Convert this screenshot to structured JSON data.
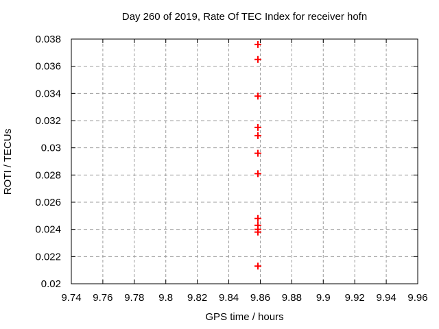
{
  "chart_data": {
    "type": "scatter",
    "title": "Day 260 of 2019, Rate Of TEC Index for receiver hofn",
    "xlabel": "GPS time / hours",
    "ylabel": "ROTI / TECUs",
    "xlim": [
      9.74,
      9.96
    ],
    "ylim": [
      0.02,
      0.038
    ],
    "xticks": [
      9.74,
      9.76,
      9.78,
      9.8,
      9.82,
      9.84,
      9.86,
      9.88,
      9.9,
      9.92,
      9.94,
      9.96
    ],
    "xtick_labels": [
      "9.74",
      "9.76",
      "9.78",
      "9.8",
      "9.82",
      "9.84",
      "9.86",
      "9.88",
      "9.9",
      "9.92",
      "9.94",
      "9.96"
    ],
    "yticks": [
      0.02,
      0.022,
      0.024,
      0.026,
      0.028,
      0.03,
      0.032,
      0.034,
      0.036,
      0.038
    ],
    "ytick_labels": [
      "0.02",
      "0.022",
      "0.024",
      "0.026",
      "0.028",
      "0.03",
      "0.032",
      "0.034",
      "0.036",
      "0.038"
    ],
    "grid": true,
    "legend": "none",
    "series": [
      {
        "name": "",
        "marker": "plus",
        "color": "#ff0000",
        "points": [
          [
            9.8585,
            0.0376
          ],
          [
            9.8585,
            0.0365
          ],
          [
            9.8585,
            0.0338
          ],
          [
            9.8585,
            0.0315
          ],
          [
            9.8585,
            0.0309
          ],
          [
            9.8585,
            0.0296
          ],
          [
            9.8585,
            0.0281
          ],
          [
            9.8585,
            0.0248
          ],
          [
            9.8585,
            0.0243
          ],
          [
            9.8585,
            0.024
          ],
          [
            9.8585,
            0.0238
          ],
          [
            9.8585,
            0.0213
          ]
        ]
      }
    ],
    "colors": {
      "axis": "#000000",
      "grid": "#9c9c9c",
      "background": "#ffffff",
      "text": "#000000"
    }
  }
}
